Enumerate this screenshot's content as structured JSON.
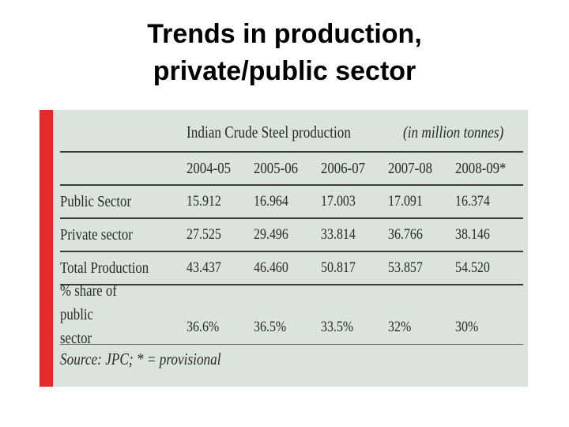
{
  "title": {
    "line1": "Trends in production,",
    "line2": "private/public sector"
  },
  "table": {
    "caption": "Indian Crude Steel production",
    "unit": "(in million tonnes)",
    "columns": [
      "2004-05",
      "2005-06",
      "2006-07",
      "2007-08",
      "2008-09*"
    ],
    "rows": [
      {
        "label": "Public Sector",
        "values": [
          "15.912",
          "16.964",
          "17.003",
          "17.091",
          "16.374"
        ]
      },
      {
        "label": "Private sector",
        "values": [
          "27.525",
          "29.496",
          "33.814",
          "36.766",
          "38.146"
        ]
      },
      {
        "label": "Total Production",
        "values": [
          "43.437",
          "46.460",
          "50.817",
          "53.857",
          "54.520"
        ]
      },
      {
        "label_line1": "% share of public",
        "label_line2": "sector",
        "values": [
          "36.6%",
          "36.5%",
          "33.5%",
          "32%",
          "30%"
        ]
      }
    ],
    "source": "Source: JPC; * = provisional"
  },
  "colors": {
    "accent_bar": "#e32b2b",
    "table_background": "#dbe3dd"
  }
}
